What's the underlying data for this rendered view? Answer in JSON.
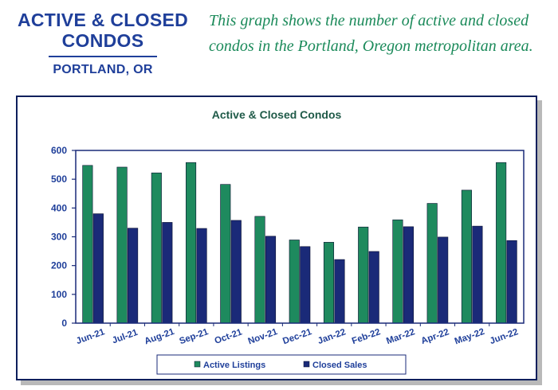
{
  "header": {
    "title_line1": "ACTIVE & CLOSED",
    "title_line2": "CONDOS",
    "subtitle": "PORTLAND, OR",
    "desc_line1": "This graph shows the number of active and closed",
    "desc_line2": "condos in the Portland, Oregon metropolitan area."
  },
  "colors": {
    "active": "#1e8a5e",
    "closed": "#1a2a78",
    "axis": "#1a2a78",
    "title": "#1f5a48"
  },
  "chart_data": {
    "type": "bar",
    "title": "Active & Closed Condos",
    "categories": [
      "Jun-21",
      "Jul-21",
      "Aug-21",
      "Sep-21",
      "Oct-21",
      "Nov-21",
      "Dec-21",
      "Jan-22",
      "Feb-22",
      "Mar-22",
      "Apr-22",
      "May-22",
      "Jun-22"
    ],
    "series": [
      {
        "name": "Active Listings",
        "values": [
          548,
          542,
          522,
          558,
          482,
          371,
          289,
          281,
          334,
          359,
          416,
          462,
          558
        ]
      },
      {
        "name": "Closed Sales",
        "values": [
          380,
          330,
          350,
          329,
          357,
          302,
          266,
          221,
          249,
          335,
          299,
          337,
          287
        ]
      }
    ],
    "ylim": [
      0,
      600
    ],
    "yticks": [
      "0",
      "100",
      "200",
      "300",
      "400",
      "500",
      "600"
    ],
    "grid": false,
    "legend": "bottom"
  }
}
